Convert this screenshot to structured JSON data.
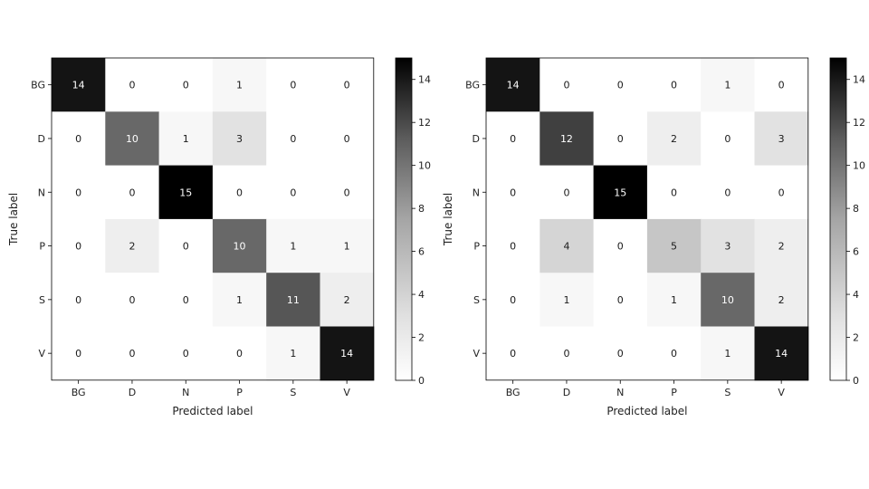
{
  "chart_data": [
    {
      "type": "heatmap",
      "title": "",
      "xlabel": "Predicted label",
      "ylabel": "True label",
      "x_categories": [
        "BG",
        "D",
        "N",
        "P",
        "S",
        "V"
      ],
      "y_categories": [
        "BG",
        "D",
        "N",
        "P",
        "S",
        "V"
      ],
      "matrix": [
        [
          14,
          0,
          0,
          1,
          0,
          0
        ],
        [
          0,
          10,
          1,
          3,
          0,
          0
        ],
        [
          0,
          0,
          15,
          0,
          0,
          0
        ],
        [
          0,
          2,
          0,
          10,
          1,
          1
        ],
        [
          0,
          0,
          0,
          1,
          11,
          2
        ],
        [
          0,
          0,
          0,
          0,
          1,
          14
        ]
      ],
      "colormap": "Greys",
      "color_range": [
        0,
        15
      ],
      "colorbar_ticks": [
        0,
        2,
        4,
        6,
        8,
        10,
        12,
        14
      ]
    },
    {
      "type": "heatmap",
      "title": "",
      "xlabel": "Predicted label",
      "ylabel": "True label",
      "x_categories": [
        "BG",
        "D",
        "N",
        "P",
        "S",
        "V"
      ],
      "y_categories": [
        "BG",
        "D",
        "N",
        "P",
        "S",
        "V"
      ],
      "matrix": [
        [
          14,
          0,
          0,
          0,
          1,
          0
        ],
        [
          0,
          12,
          0,
          2,
          0,
          3
        ],
        [
          0,
          0,
          15,
          0,
          0,
          0
        ],
        [
          0,
          4,
          0,
          5,
          3,
          2
        ],
        [
          0,
          1,
          0,
          1,
          10,
          2
        ],
        [
          0,
          0,
          0,
          0,
          1,
          14
        ]
      ],
      "colormap": "Greys",
      "color_range": [
        0,
        15
      ],
      "colorbar_ticks": [
        0,
        2,
        4,
        6,
        8,
        10,
        12,
        14
      ]
    }
  ]
}
